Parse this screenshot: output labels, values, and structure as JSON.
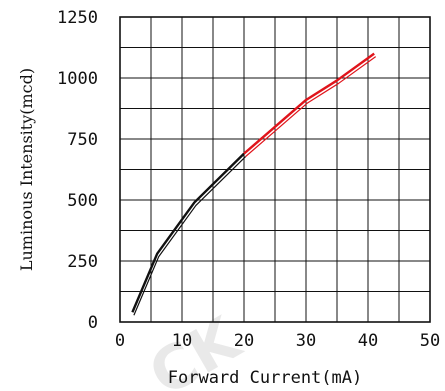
{
  "chart_data": {
    "type": "line",
    "xlabel": "Forward Current(mA)",
    "ylabel": "Luminous Intensity(mcd)",
    "xlim": [
      0,
      50
    ],
    "ylim": [
      0,
      1250
    ],
    "x_ticks": [
      0,
      10,
      20,
      30,
      40,
      50
    ],
    "y_ticks": [
      0,
      250,
      500,
      750,
      1000,
      1250
    ],
    "grid": true,
    "series": [
      {
        "color": "#111111",
        "x": [
          2,
          6,
          12,
          20
        ],
        "y": [
          40,
          280,
          490,
          690
        ]
      },
      {
        "color": "#e0141b",
        "x": [
          20,
          25,
          30,
          35,
          41
        ],
        "y": [
          690,
          800,
          910,
          990,
          1100
        ]
      }
    ]
  },
  "watermark_text": "CK"
}
